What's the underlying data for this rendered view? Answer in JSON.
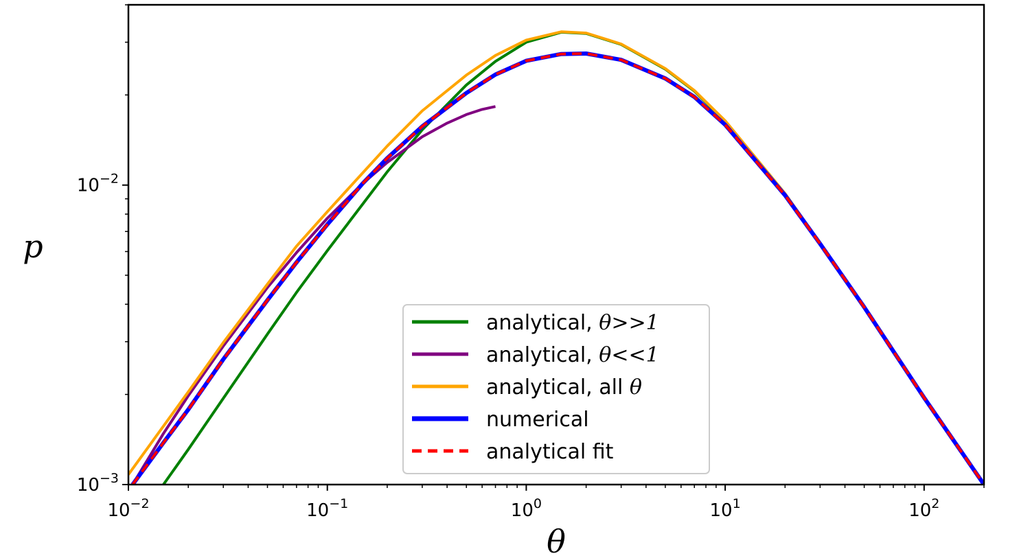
{
  "chart_data": {
    "type": "line",
    "title": "",
    "xlabel": "θ",
    "ylabel": "p",
    "xscale": "log",
    "yscale": "log",
    "xlim": [
      0.01,
      200
    ],
    "ylim": [
      0.001,
      0.04
    ],
    "grid": false,
    "legend_position": "lower-center",
    "x_ticks": [
      {
        "value": 0.01,
        "base": "10",
        "exp": "−2"
      },
      {
        "value": 0.1,
        "base": "10",
        "exp": "−1"
      },
      {
        "value": 1,
        "base": "10",
        "exp": "0"
      },
      {
        "value": 10,
        "base": "10",
        "exp": "1"
      },
      {
        "value": 100,
        "base": "10",
        "exp": "2"
      }
    ],
    "y_ticks": [
      {
        "value": 0.001,
        "base": "10",
        "exp": "−3"
      },
      {
        "value": 0.01,
        "base": "10",
        "exp": "−2"
      }
    ],
    "series": [
      {
        "name": "analytical, θ>>1",
        "legend_text": "analytical,",
        "legend_math": "θ>>1",
        "color": "#008000",
        "width": 4,
        "dash": "",
        "x": [
          0.015,
          0.02,
          0.03,
          0.05,
          0.07,
          0.1,
          0.2,
          0.3,
          0.5,
          0.7,
          1.0,
          1.5,
          2.0,
          3.0,
          5.0,
          7.0,
          10,
          20,
          30,
          50,
          100,
          200
        ],
        "y": [
          0.001,
          0.00131,
          0.00194,
          0.00318,
          0.00438,
          0.00604,
          0.01107,
          0.0153,
          0.0216,
          0.0259,
          0.03,
          0.0324,
          0.0321,
          0.0295,
          0.0244,
          0.0206,
          0.0163,
          0.00934,
          0.0064,
          0.00392,
          0.00195,
          0.001
        ]
      },
      {
        "name": "analytical, θ<<1",
        "legend_text": "analytical,",
        "legend_math": "θ<<1",
        "color": "#800080",
        "width": 4,
        "dash": "",
        "x": [
          0.0105,
          0.015,
          0.02,
          0.03,
          0.05,
          0.07,
          0.1,
          0.15,
          0.2,
          0.3,
          0.4,
          0.5,
          0.6,
          0.7
        ],
        "y": [
          0.001,
          0.00148,
          0.00198,
          0.0029,
          0.00455,
          0.00595,
          0.00775,
          0.0101,
          0.0119,
          0.0145,
          0.0161,
          0.0172,
          0.0179,
          0.0183
        ]
      },
      {
        "name": "analytical, all θ",
        "legend_text": "analytical, all",
        "legend_math": "θ",
        "color": "#FFA500",
        "width": 4,
        "dash": "",
        "x": [
          0.01,
          0.02,
          0.03,
          0.05,
          0.07,
          0.1,
          0.2,
          0.3,
          0.5,
          0.7,
          1.0,
          1.5,
          2.0,
          3.0,
          5.0,
          7.0,
          10,
          20,
          30,
          50,
          100,
          200
        ],
        "y": [
          0.00108,
          0.00204,
          0.00298,
          0.00467,
          0.00625,
          0.00815,
          0.0135,
          0.0177,
          0.0233,
          0.0271,
          0.0305,
          0.0325,
          0.0322,
          0.0296,
          0.0245,
          0.0207,
          0.0164,
          0.00937,
          0.00641,
          0.00392,
          0.00195,
          0.001
        ]
      },
      {
        "name": "numerical",
        "legend_text": "numerical",
        "legend_math": "",
        "color": "#0000FF",
        "width": 6,
        "dash": "",
        "x": [
          0.0105,
          0.015,
          0.02,
          0.03,
          0.05,
          0.07,
          0.1,
          0.15,
          0.2,
          0.3,
          0.5,
          0.7,
          1.0,
          1.5,
          2.0,
          3.0,
          5.0,
          7.0,
          10,
          20,
          30,
          50,
          100,
          200
        ],
        "y": [
          0.001,
          0.00138,
          0.00178,
          0.00262,
          0.00413,
          0.00552,
          0.00739,
          0.0101,
          0.0123,
          0.0157,
          0.0203,
          0.0234,
          0.026,
          0.0274,
          0.0275,
          0.0262,
          0.0227,
          0.0197,
          0.0159,
          0.00925,
          0.00637,
          0.00391,
          0.00195,
          0.001
        ]
      },
      {
        "name": "analytical fit",
        "legend_text": "analytical fit",
        "legend_math": "",
        "color": "#FF0000",
        "width": 4,
        "dash": "14,9",
        "x": [
          0.0105,
          0.015,
          0.02,
          0.03,
          0.05,
          0.07,
          0.1,
          0.15,
          0.2,
          0.3,
          0.5,
          0.7,
          1.0,
          1.5,
          2.0,
          3.0,
          5.0,
          7.0,
          10,
          20,
          30,
          50,
          100,
          200
        ],
        "y": [
          0.001,
          0.00138,
          0.00178,
          0.00262,
          0.00413,
          0.00552,
          0.00739,
          0.0101,
          0.0123,
          0.0157,
          0.0203,
          0.0234,
          0.026,
          0.0274,
          0.0275,
          0.0262,
          0.0227,
          0.0197,
          0.0159,
          0.00925,
          0.00637,
          0.00391,
          0.00195,
          0.001
        ]
      }
    ]
  }
}
